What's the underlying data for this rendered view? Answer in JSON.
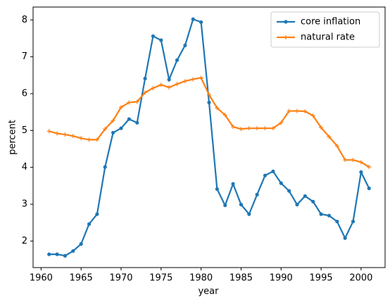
{
  "chart_data": {
    "type": "line",
    "x": [
      1961,
      1962,
      1963,
      1964,
      1965,
      1966,
      1967,
      1968,
      1969,
      1970,
      1971,
      1972,
      1973,
      1974,
      1975,
      1976,
      1977,
      1978,
      1979,
      1980,
      1981,
      1982,
      1983,
      1984,
      1985,
      1986,
      1987,
      1988,
      1989,
      1990,
      1991,
      1992,
      1993,
      1994,
      1995,
      1996,
      1997,
      1998,
      1999,
      2000,
      2001
    ],
    "series": [
      {
        "name": "core inflation",
        "color": "#1f77b4",
        "marker": "circle",
        "values": [
          1.64,
          1.64,
          1.6,
          1.73,
          1.92,
          2.46,
          2.73,
          4.01,
          4.94,
          5.06,
          5.31,
          5.21,
          6.41,
          7.56,
          7.45,
          6.38,
          6.91,
          7.31,
          8.02,
          7.94,
          5.76,
          3.41,
          2.97,
          3.55,
          2.99,
          2.73,
          3.26,
          3.78,
          3.89,
          3.57,
          3.36,
          2.99,
          3.22,
          3.07,
          2.73,
          2.69,
          2.53,
          2.08,
          2.53,
          3.87,
          3.43
        ]
      },
      {
        "name": "natural rate",
        "color": "#ff7f0e",
        "marker": "plus",
        "values": [
          4.98,
          4.92,
          4.89,
          4.85,
          4.79,
          4.75,
          4.75,
          5.04,
          5.27,
          5.63,
          5.76,
          5.78,
          6.03,
          6.15,
          6.24,
          6.17,
          6.26,
          6.34,
          6.39,
          6.43,
          5.97,
          5.61,
          5.42,
          5.1,
          5.04,
          5.06,
          5.06,
          5.06,
          5.06,
          5.21,
          5.53,
          5.53,
          5.52,
          5.4,
          5.08,
          4.83,
          4.58,
          4.2,
          4.2,
          4.14,
          4.01
        ]
      }
    ],
    "xlabel": "year",
    "ylabel": "percent",
    "xlim": [
      1959,
      2003
    ],
    "xticks": [
      1960,
      1965,
      1970,
      1975,
      1980,
      1985,
      1990,
      1995,
      2000
    ],
    "ylim": [
      1.28,
      8.35
    ],
    "yticks": [
      2,
      3,
      4,
      5,
      6,
      7,
      8
    ],
    "legend": "upper right"
  }
}
